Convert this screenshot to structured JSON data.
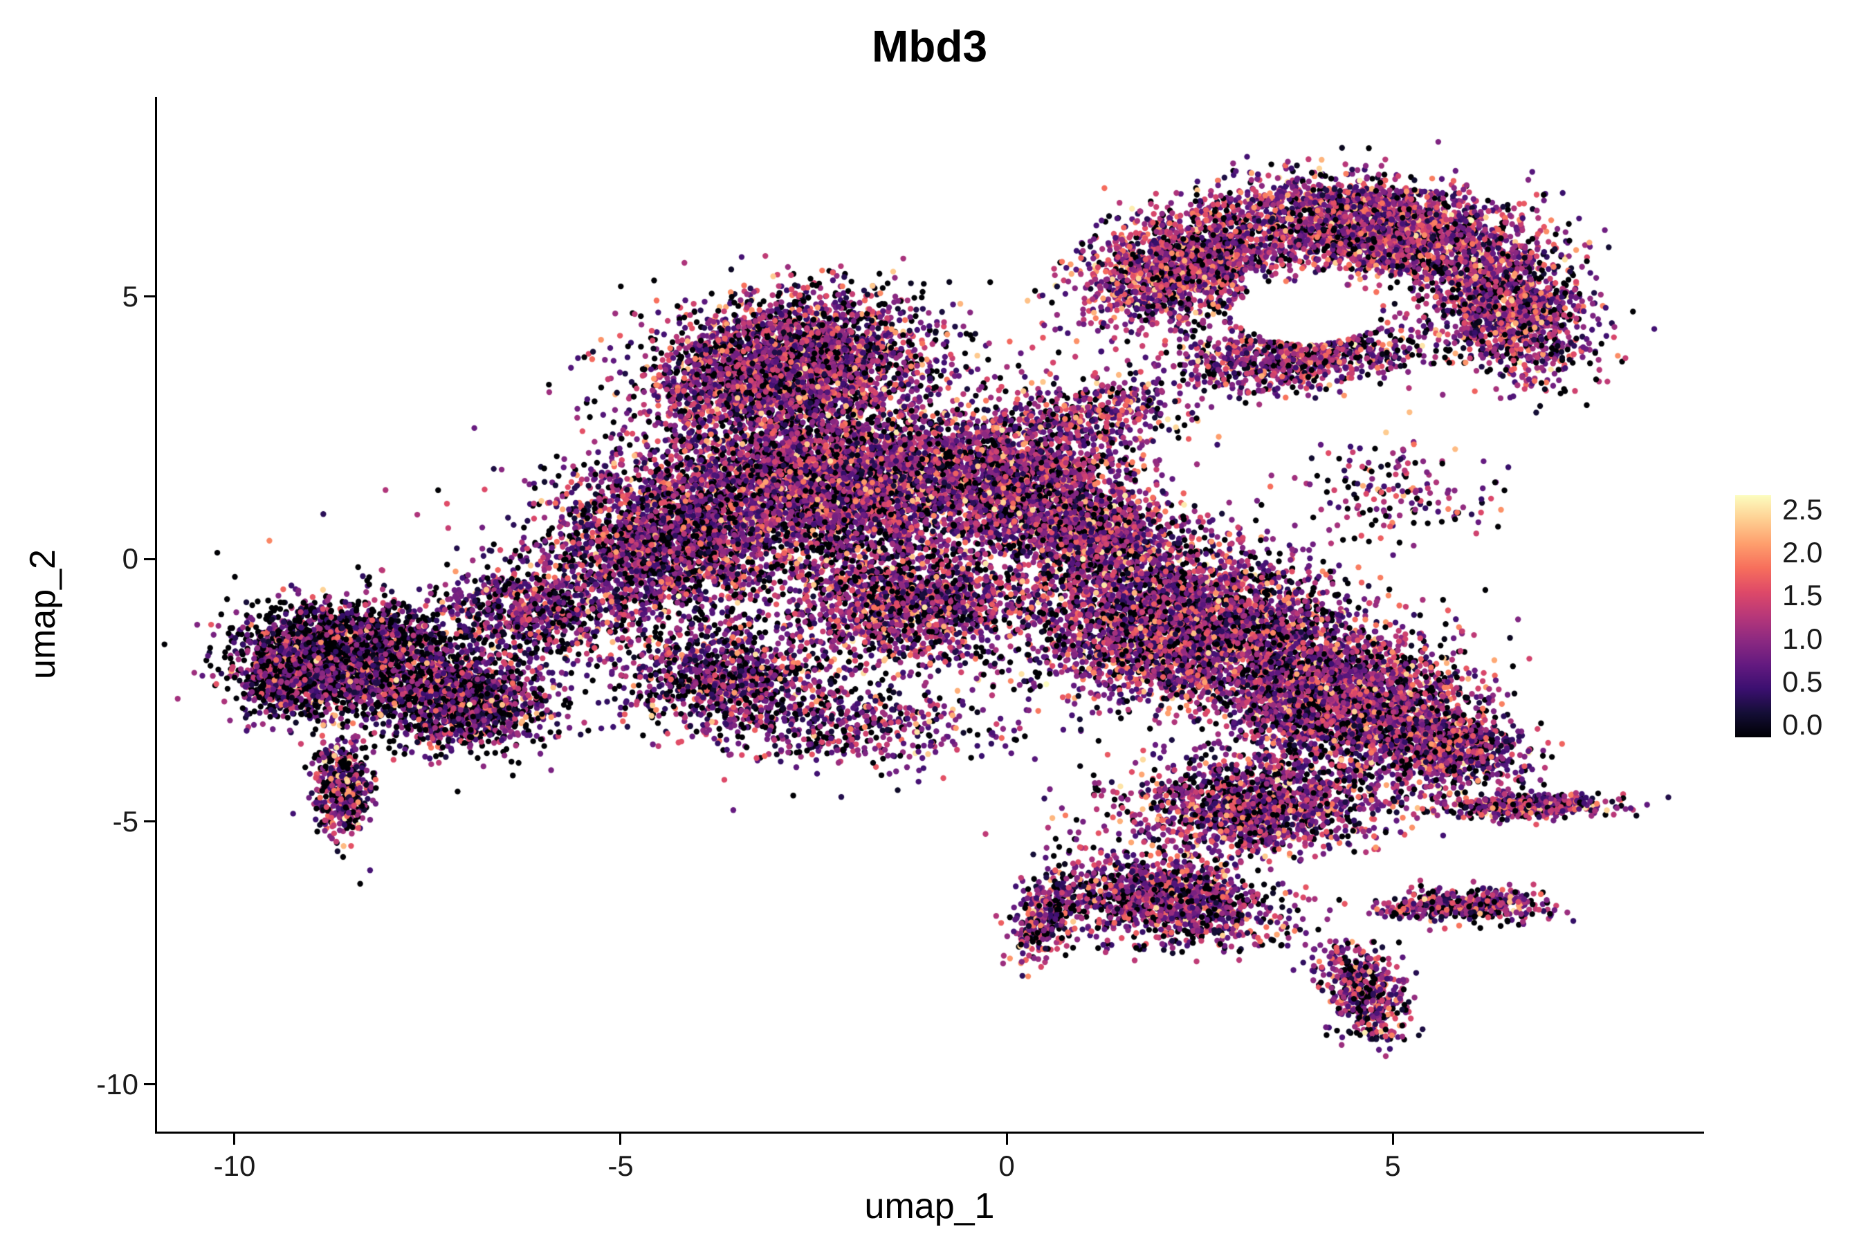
{
  "chart_data": {
    "type": "scatter",
    "title": "Mbd3",
    "xlabel": "umap_1",
    "ylabel": "umap_2",
    "x_range": [
      -11,
      9
    ],
    "y_range": [
      -10.9,
      8.8
    ],
    "x_ticks": [
      -10,
      -5,
      0,
      5
    ],
    "x_tick_labels": [
      "-10",
      "-5",
      "0",
      "5"
    ],
    "y_ticks": [
      5,
      0,
      -5,
      -10
    ],
    "y_tick_labels": [
      "5",
      "0",
      "-5",
      "-10"
    ],
    "grid": false,
    "legend_position": "right",
    "point_radius": 4.2,
    "colorbar": {
      "min": 0,
      "max": 2.5,
      "tick_labels": [
        "2.5",
        "2.0",
        "1.5",
        "1.0",
        "0.5",
        "0.0"
      ],
      "colormap": "magma",
      "stops": [
        "#000004",
        "#140e36",
        "#3b0f70",
        "#641a80",
        "#8c2981",
        "#b73779",
        "#de4968",
        "#f76f5c",
        "#fe9f6d",
        "#fecf92",
        "#fcfdbf"
      ]
    },
    "value_model": {
      "hot_frac": 0.05,
      "hot_min": 1.5,
      "hot_span": 0.9
    },
    "holes": [
      {
        "cx": 3.9,
        "cy": 4.7,
        "rx": 0.95,
        "ry": 0.6
      }
    ],
    "clusters": [
      {
        "name": "wing-left",
        "cx": 2.3,
        "cy": 5.6,
        "rx": 1.5,
        "ry": 1.0,
        "rot": 35,
        "n": 1800,
        "black_frac": 0.13,
        "value_mean": 1.05,
        "value_sd": 0.5
      },
      {
        "name": "wing-top",
        "cx": 4.8,
        "cy": 6.3,
        "rx": 1.7,
        "ry": 0.9,
        "rot": -10,
        "n": 2400,
        "black_frac": 0.13,
        "value_mean": 1.05,
        "value_sd": 0.5
      },
      {
        "name": "wing-right-tip",
        "cx": 6.5,
        "cy": 4.8,
        "rx": 1.0,
        "ry": 1.4,
        "rot": 20,
        "n": 1500,
        "black_frac": 0.13,
        "value_mean": 1.0,
        "value_sd": 0.5
      },
      {
        "name": "wing-lower-band",
        "cx": 3.8,
        "cy": 3.9,
        "rx": 1.5,
        "ry": 0.65,
        "rot": 8,
        "n": 1000,
        "black_frac": 0.15,
        "value_mean": 1.0,
        "value_sd": 0.5
      },
      {
        "name": "wing-bridge",
        "cx": 1.3,
        "cy": 2.8,
        "rx": 1.2,
        "ry": 0.7,
        "rot": 20,
        "n": 350,
        "black_frac": 0.15,
        "value_mean": 1.0,
        "value_sd": 0.5
      },
      {
        "name": "central-top",
        "cx": -2.8,
        "cy": 3.7,
        "rx": 1.8,
        "ry": 1.3,
        "rot": 15,
        "n": 3200,
        "black_frac": 0.2,
        "value_mean": 0.95,
        "value_sd": 0.5
      },
      {
        "name": "central-core",
        "cx": -2.3,
        "cy": 1.4,
        "rx": 2.3,
        "ry": 1.5,
        "rot": 0,
        "n": 4500,
        "black_frac": 0.18,
        "value_mean": 0.95,
        "value_sd": 0.5
      },
      {
        "name": "central-left",
        "cx": -4.5,
        "cy": 0.2,
        "rx": 1.5,
        "ry": 1.5,
        "rot": 0,
        "n": 2200,
        "black_frac": 0.22,
        "value_mean": 0.9,
        "value_sd": 0.5
      },
      {
        "name": "central-right",
        "cx": 0.2,
        "cy": 1.6,
        "rx": 1.4,
        "ry": 1.4,
        "rot": 0,
        "n": 1800,
        "black_frac": 0.16,
        "value_mean": 1.0,
        "value_sd": 0.5
      },
      {
        "name": "central-lower",
        "cx": -1.3,
        "cy": -0.9,
        "rx": 1.6,
        "ry": 1.1,
        "rot": 0,
        "n": 1600,
        "black_frac": 0.18,
        "value_mean": 0.95,
        "value_sd": 0.5
      },
      {
        "name": "central-lower-left",
        "cx": -3.6,
        "cy": -2.3,
        "rx": 1.5,
        "ry": 1.0,
        "rot": -15,
        "n": 1100,
        "black_frac": 0.25,
        "value_mean": 0.85,
        "value_sd": 0.5
      },
      {
        "name": "central-below-sparse",
        "cx": -1.8,
        "cy": -3.2,
        "rx": 1.9,
        "ry": 0.8,
        "rot": 0,
        "n": 420,
        "black_frac": 0.2,
        "value_mean": 0.9,
        "value_sd": 0.5
      },
      {
        "name": "left-lobe-main",
        "cx": -8.5,
        "cy": -1.9,
        "rx": 1.4,
        "ry": 1.1,
        "rot": 0,
        "n": 2600,
        "black_frac": 0.32,
        "value_mean": 0.75,
        "value_sd": 0.5
      },
      {
        "name": "left-lobe-inner",
        "cx": -7.0,
        "cy": -2.7,
        "rx": 1.1,
        "ry": 0.9,
        "rot": 0,
        "n": 1300,
        "black_frac": 0.28,
        "value_mean": 0.8,
        "value_sd": 0.5
      },
      {
        "name": "left-lobe-edge",
        "cx": -9.4,
        "cy": -2.2,
        "rx": 0.5,
        "ry": 0.8,
        "rot": 0,
        "n": 350,
        "black_frac": 0.3,
        "value_mean": 0.8,
        "value_sd": 0.5
      },
      {
        "name": "left-lobe-tail",
        "cx": -8.6,
        "cy": -4.4,
        "rx": 0.4,
        "ry": 0.9,
        "rot": 0,
        "n": 450,
        "black_frac": 0.25,
        "value_mean": 0.9,
        "value_sd": 0.55
      },
      {
        "name": "left-bridge",
        "cx": -6.2,
        "cy": -1.0,
        "rx": 1.1,
        "ry": 1.0,
        "rot": 0,
        "n": 700,
        "black_frac": 0.25,
        "value_mean": 0.85,
        "value_sd": 0.5
      },
      {
        "name": "right-mass-main",
        "cx": 2.3,
        "cy": -1.3,
        "rx": 2.2,
        "ry": 1.5,
        "rot": -10,
        "n": 3800,
        "black_frac": 0.18,
        "value_mean": 0.95,
        "value_sd": 0.5
      },
      {
        "name": "right-mass-east",
        "cx": 4.4,
        "cy": -2.7,
        "rx": 1.6,
        "ry": 1.3,
        "rot": -20,
        "n": 2600,
        "black_frac": 0.18,
        "value_mean": 0.95,
        "value_sd": 0.5
      },
      {
        "name": "right-neck",
        "cx": 1.1,
        "cy": 0.4,
        "rx": 1.3,
        "ry": 1.0,
        "rot": -30,
        "n": 1300,
        "black_frac": 0.16,
        "value_mean": 1.0,
        "value_sd": 0.5
      },
      {
        "name": "right-bulge",
        "cx": 5.7,
        "cy": -3.6,
        "rx": 1.0,
        "ry": 0.8,
        "rot": -20,
        "n": 900,
        "black_frac": 0.18,
        "value_mean": 0.95,
        "value_sd": 0.5
      },
      {
        "name": "right-spike-east",
        "cx": 6.7,
        "cy": -4.7,
        "rx": 1.2,
        "ry": 0.22,
        "rot": 0,
        "n": 450,
        "black_frac": 0.2,
        "value_mean": 0.95,
        "value_sd": 0.5
      },
      {
        "name": "right-mass-lower",
        "cx": 3.2,
        "cy": -4.7,
        "rx": 1.7,
        "ry": 0.9,
        "rot": 0,
        "n": 1600,
        "black_frac": 0.18,
        "value_mean": 0.95,
        "value_sd": 0.5
      },
      {
        "name": "bottom-mass",
        "cx": 2.1,
        "cy": -6.5,
        "rx": 1.4,
        "ry": 0.8,
        "rot": -15,
        "n": 1300,
        "black_frac": 0.2,
        "value_mean": 0.95,
        "value_sd": 0.5
      },
      {
        "name": "bottom-spike-down",
        "cx": 4.6,
        "cy": -8.2,
        "rx": 0.5,
        "ry": 0.9,
        "rot": 15,
        "n": 500,
        "black_frac": 0.2,
        "value_mean": 0.9,
        "value_sd": 0.5
      },
      {
        "name": "bottom-spike-east",
        "cx": 5.9,
        "cy": -6.6,
        "rx": 1.1,
        "ry": 0.3,
        "rot": 0,
        "n": 420,
        "black_frac": 0.2,
        "value_mean": 0.9,
        "value_sd": 0.5
      },
      {
        "name": "bottom-left-tail",
        "cx": 0.5,
        "cy": -6.9,
        "rx": 0.4,
        "ry": 0.9,
        "rot": -15,
        "n": 320,
        "black_frac": 0.2,
        "value_mean": 0.95,
        "value_sd": 0.5
      },
      {
        "name": "gap-sparse-right",
        "cx": 5.0,
        "cy": 1.2,
        "rx": 1.2,
        "ry": 1.0,
        "rot": 0,
        "n": 160,
        "black_frac": 0.18,
        "value_mean": 0.95,
        "value_sd": 0.5
      },
      {
        "name": "global-sparse",
        "cx": -1.0,
        "cy": 0.5,
        "rx": 5.5,
        "ry": 3.5,
        "rot": 0,
        "n": 220,
        "black_frac": 0.2,
        "value_mean": 0.9,
        "value_sd": 0.5
      }
    ]
  }
}
